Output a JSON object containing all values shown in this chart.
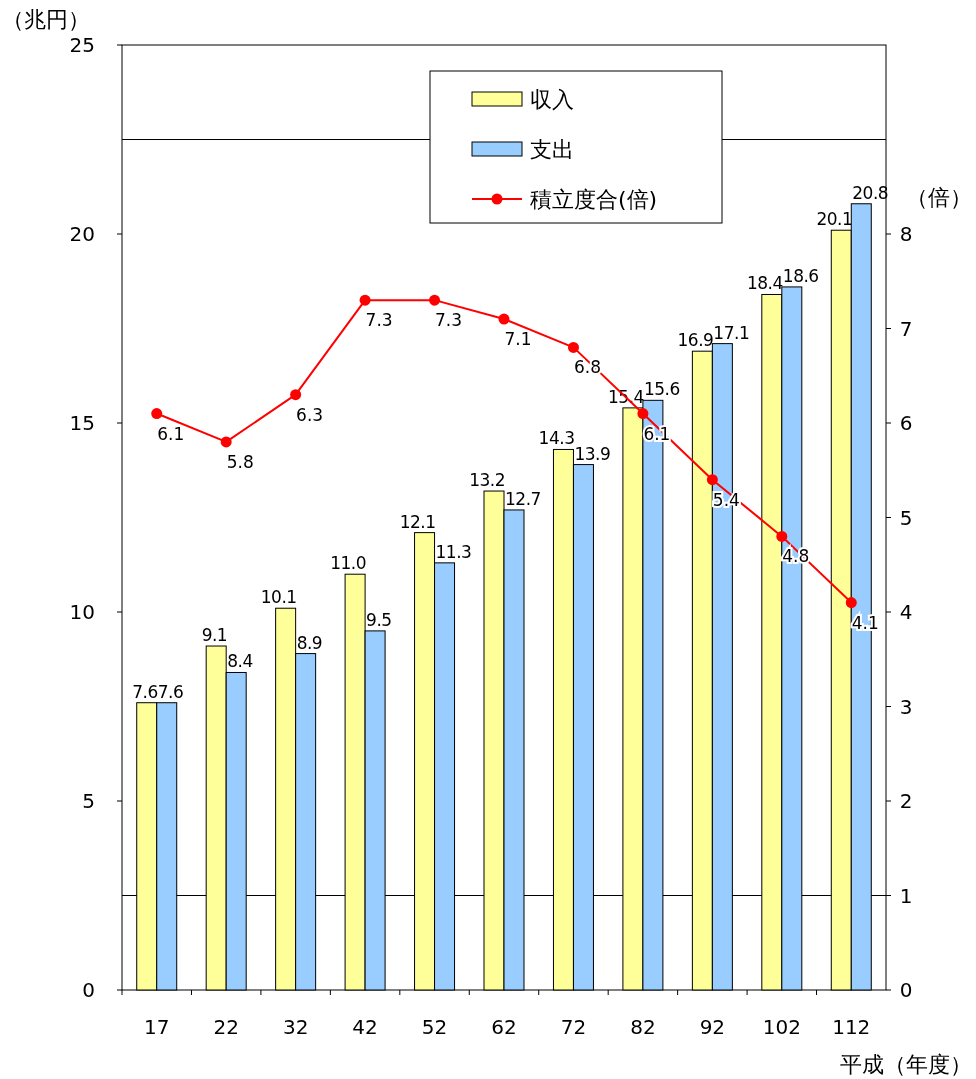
{
  "chart_data": {
    "type": "bar",
    "ylabel": "（兆円）",
    "y2label": "（倍）",
    "xlabel": "平成（年度）",
    "categories": [
      "17",
      "22",
      "32",
      "42",
      "52",
      "62",
      "72",
      "82",
      "92",
      "102",
      "112"
    ],
    "series": [
      {
        "name": "収入",
        "color": "#ffff99",
        "values": [
          7.6,
          9.1,
          10.1,
          11.0,
          12.1,
          13.2,
          14.3,
          15.4,
          16.9,
          18.4,
          20.1
        ],
        "value_labels": [
          "7.6",
          "9.1",
          "10.1",
          "11.0",
          "12.1",
          "13.2",
          "14.3",
          "15.4",
          "16.9",
          "18.4",
          "20.1"
        ]
      },
      {
        "name": "支出",
        "color": "#99ccff",
        "values": [
          7.6,
          8.4,
          8.9,
          9.5,
          11.3,
          12.7,
          13.9,
          15.6,
          17.1,
          18.6,
          20.8
        ]
      },
      {
        "name": "積立度合(倍)",
        "type": "line",
        "axis": "y2",
        "color": "#ff0000",
        "marker": "circle",
        "values": [
          6.1,
          5.8,
          6.3,
          7.3,
          7.3,
          7.1,
          6.8,
          6.1,
          5.4,
          4.8,
          4.1
        ]
      }
    ],
    "data_labels": true,
    "ylim": [
      0,
      25
    ],
    "yticks": [
      0,
      5,
      10,
      15,
      20,
      25
    ],
    "y2lim": [
      0,
      10
    ],
    "y2ticks": [
      0,
      1,
      2,
      3,
      4,
      5,
      6,
      7,
      8
    ],
    "ref_lines": [
      {
        "axis": "y",
        "value": 22.5,
        "color": "#000000"
      },
      {
        "axis": "y",
        "value": 2.5,
        "color": "#000000"
      }
    ],
    "legend": "top",
    "grid": false
  }
}
